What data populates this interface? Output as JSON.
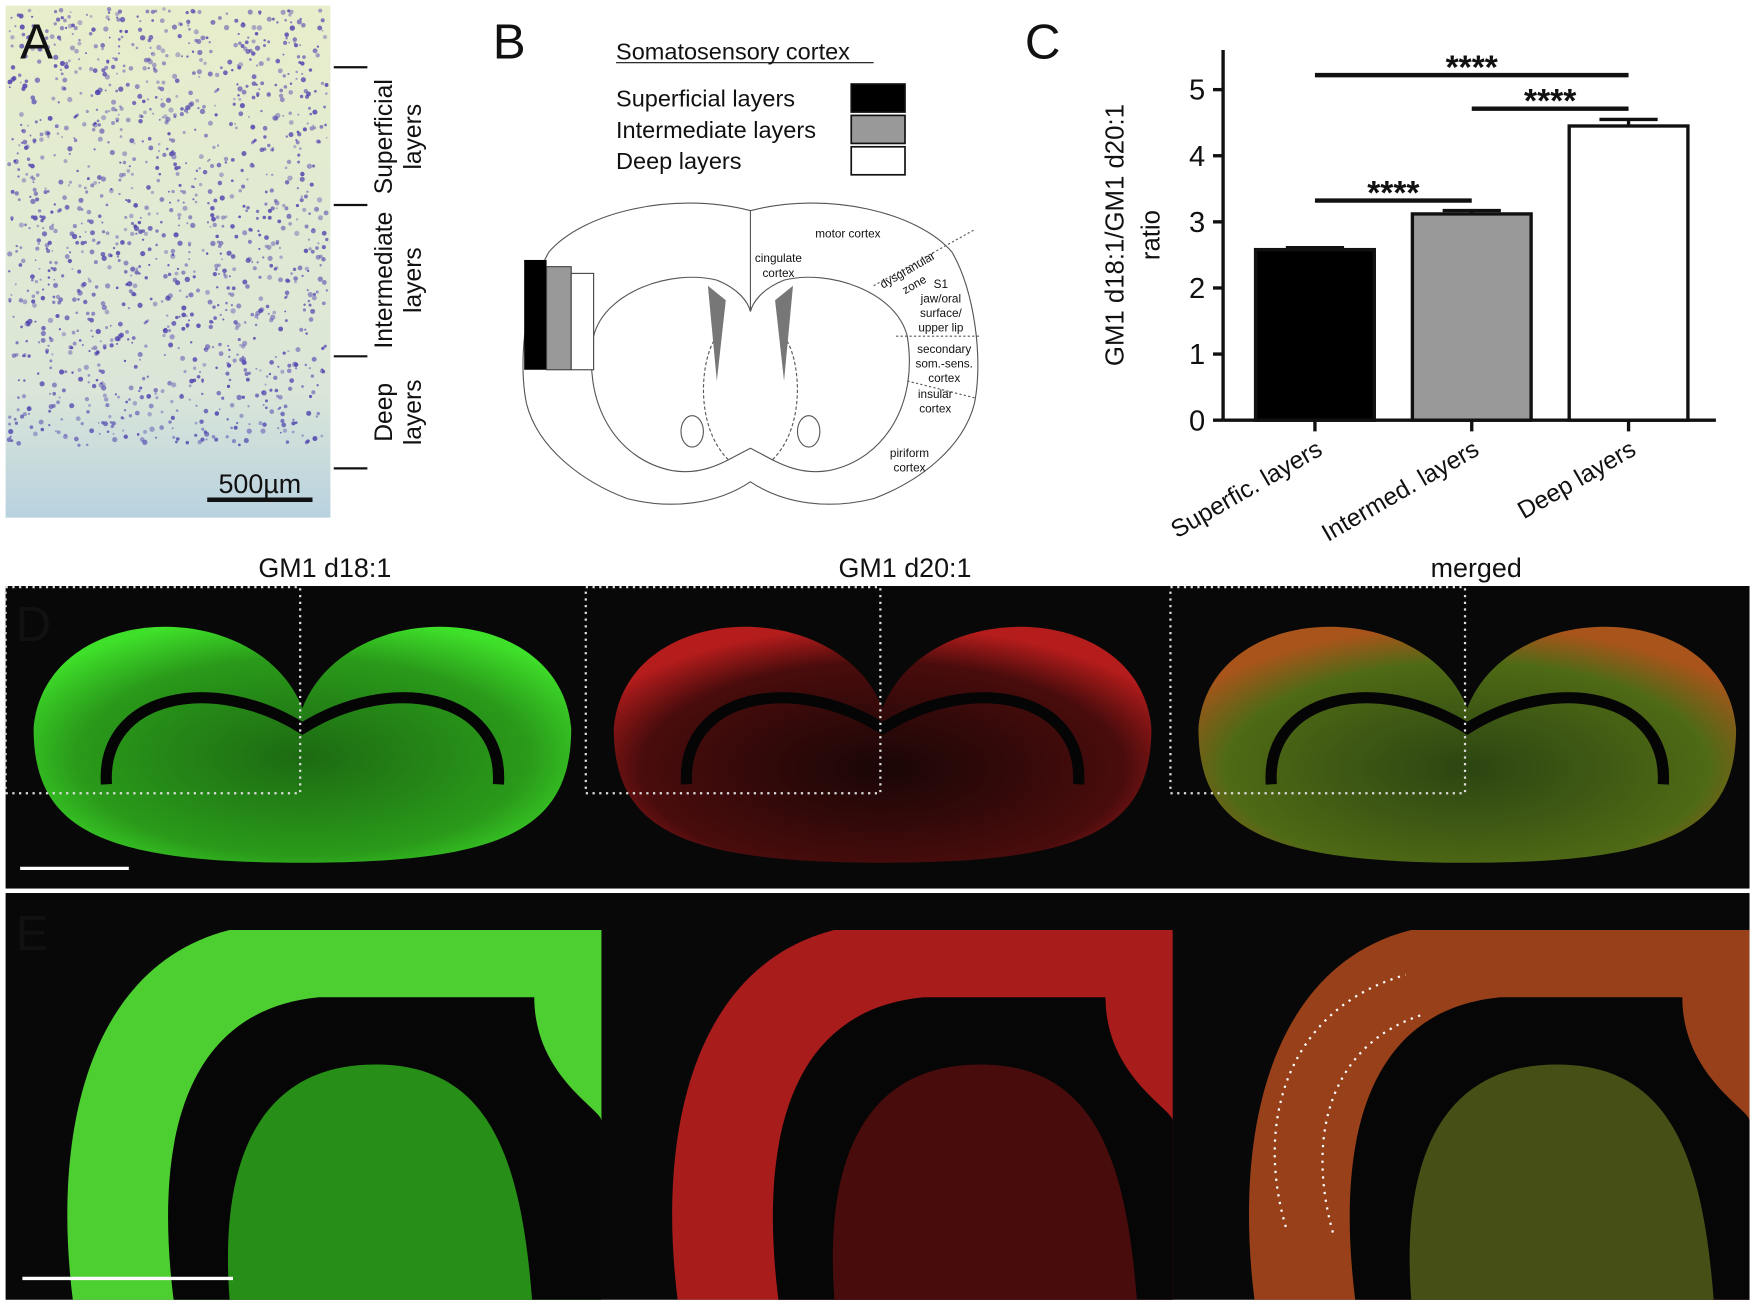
{
  "panel_labels": [
    "A",
    "B",
    "C",
    "D",
    "E"
  ],
  "panel_a": {
    "layers": [
      [
        "Superficial",
        "layers"
      ],
      [
        "Intermediate",
        "layers"
      ],
      [
        "Deep",
        "layers"
      ]
    ],
    "scale_bar": "500µm"
  },
  "panel_b": {
    "title": "Somatosensory cortex",
    "legend": [
      {
        "label": "Superficial layers",
        "color": "#000000"
      },
      {
        "label": "Intermediate layers",
        "color": "#999999"
      },
      {
        "label": "Deep layers",
        "color": "#ffffff"
      }
    ],
    "regions": [
      [
        "motor cortex"
      ],
      [
        "cingulate",
        "cortex"
      ],
      [
        "dysgranular",
        "zone"
      ],
      [
        "S1",
        "jaw/oral",
        "surface/",
        "upper lip"
      ],
      [
        "secondary",
        "som.-sens.",
        "cortex"
      ],
      [
        "insular",
        "cortex"
      ],
      [
        "piriform",
        "cortex"
      ]
    ]
  },
  "chart_data": {
    "type": "bar",
    "y_label": [
      "GM1 d18:1/GM1 d20:1",
      "ratio"
    ],
    "categories": [
      "Superfic. layers",
      "Intermed. layers",
      "Deep layers"
    ],
    "values": [
      2.58,
      3.12,
      4.45
    ],
    "errors": [
      0.03,
      0.05,
      0.1
    ],
    "colors": [
      "#000000",
      "#999999",
      "#ffffff"
    ],
    "ylim": [
      0,
      5.6
    ],
    "yticks": [
      0,
      1,
      2,
      3,
      4,
      5
    ],
    "significance": [
      "****",
      "****",
      "****"
    ]
  },
  "panel_d": {
    "columns": [
      "GM1 d18:1",
      "GM1 d20:1",
      "merged"
    ]
  }
}
